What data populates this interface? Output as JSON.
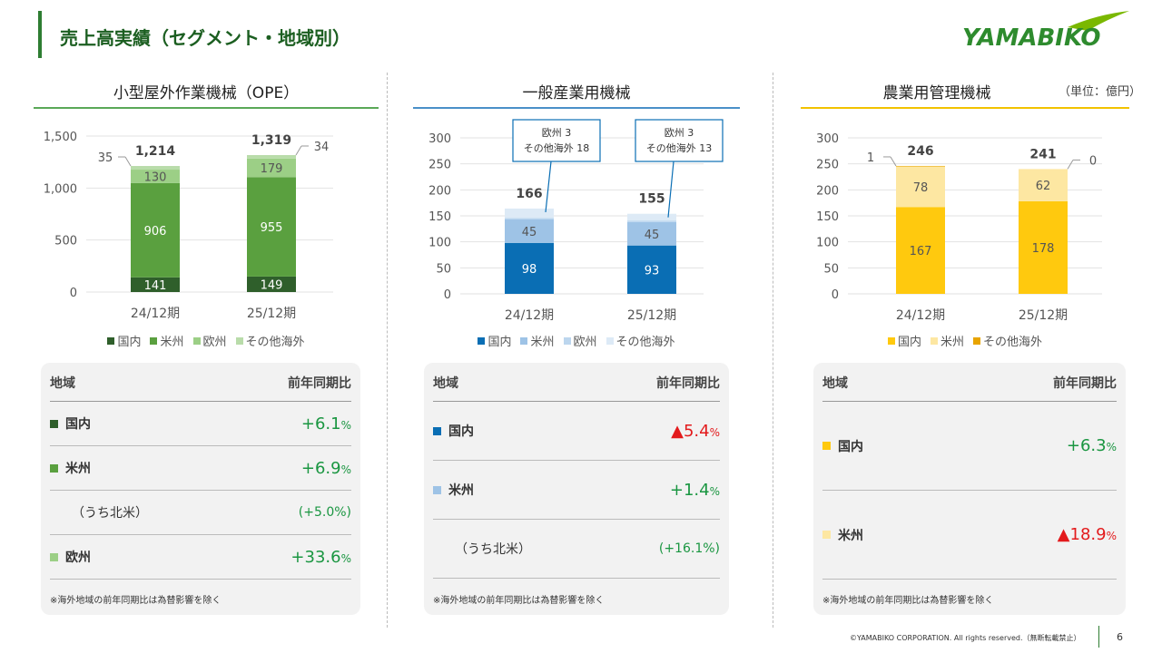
{
  "page": {
    "title": "売上高実績（セグメント・地域別）",
    "logo_text": "YAMABIKO",
    "unit_note": "（単位：億円）",
    "footer": "©YAMABIKO CORPORATION. All rights reserved.（無断転載禁止）",
    "page_number": "6"
  },
  "panels": [
    {
      "title": "小型屋外作業機械（OPE）",
      "rule_color": "#5aa857",
      "legend": [
        {
          "label": "国内",
          "color": "#2f5f2b"
        },
        {
          "label": "米州",
          "color": "#5aa03f"
        },
        {
          "label": "欧州",
          "color": "#9ccf86"
        },
        {
          "label": "その他海外",
          "color": "#b9dcaa"
        }
      ],
      "table": {
        "head_left": "地域",
        "head_right": "前年同期比",
        "rows": [
          {
            "label": "国内",
            "swatch": "#2f5f2b",
            "value": "+6.1",
            "unit": "%",
            "kind": "pos",
            "sub": false
          },
          {
            "label": "米州",
            "swatch": "#5aa03f",
            "value": "+6.9",
            "unit": "%",
            "kind": "pos",
            "sub": false
          },
          {
            "label": "（うち北米）",
            "swatch": "",
            "value": "(+5.0%)",
            "unit": "",
            "kind": "sub",
            "sub": true
          },
          {
            "label": "欧州",
            "swatch": "#9ccf86",
            "value": "+33.6",
            "unit": "%",
            "kind": "pos",
            "sub": false
          }
        ],
        "note": "※海外地域の前年同期比は為替影響を除く"
      }
    },
    {
      "title": "一般産業用機械",
      "rule_color": "#4a90c8",
      "legend": [
        {
          "label": "国内",
          "color": "#0a6eb4"
        },
        {
          "label": "米州",
          "color": "#9ec3e6"
        },
        {
          "label": "欧州",
          "color": "#bcd6ee"
        },
        {
          "label": "その他海外",
          "color": "#ddeaf6"
        }
      ],
      "table": {
        "head_left": "地域",
        "head_right": "前年同期比",
        "rows": [
          {
            "label": "国内",
            "swatch": "#0a6eb4",
            "value": "▲5.4",
            "unit": "%",
            "kind": "neg",
            "sub": false
          },
          {
            "label": "米州",
            "swatch": "#9ec3e6",
            "value": "+1.4",
            "unit": "%",
            "kind": "pos",
            "sub": false
          },
          {
            "label": "（うち北米）",
            "swatch": "",
            "value": "(+16.1%)",
            "unit": "",
            "kind": "sub",
            "sub": true
          }
        ],
        "note": "※海外地域の前年同期比は為替影響を除く"
      }
    },
    {
      "title": "農業用管理機械",
      "rule_color": "#f2c200",
      "legend": [
        {
          "label": "国内",
          "color": "#ffc90e"
        },
        {
          "label": "米州",
          "color": "#fde7a2"
        },
        {
          "label": "その他海外",
          "color": "#e8a400"
        }
      ],
      "table": {
        "head_left": "地域",
        "head_right": "前年同期比",
        "rows": [
          {
            "label": "国内",
            "swatch": "#ffc90e",
            "value": "+6.3",
            "unit": "%",
            "kind": "pos",
            "sub": false
          },
          {
            "label": "米州",
            "swatch": "#fde7a2",
            "value": "▲18.9",
            "unit": "%",
            "kind": "neg",
            "sub": false
          }
        ],
        "note": "※海外地域の前年同期比は為替影響を除く"
      }
    }
  ],
  "chart_data": [
    {
      "type": "bar",
      "stacked": true,
      "title": "小型屋外作業機械（OPE）",
      "categories": [
        "24/12期",
        "25/12期"
      ],
      "ylim": [
        0,
        1500
      ],
      "yticks": [
        "0",
        "500",
        "1,000",
        "1,500"
      ],
      "ytick_values": [
        0,
        500,
        1000,
        1500
      ],
      "totals": [
        "1,214",
        "1,319"
      ],
      "series": [
        {
          "name": "国内",
          "color": "#2f5f2b",
          "values": [
            141,
            149
          ],
          "labels": [
            "141",
            "149"
          ]
        },
        {
          "name": "米州",
          "color": "#5aa03f",
          "values": [
            906,
            955
          ],
          "labels": [
            "906",
            "955"
          ]
        },
        {
          "name": "欧州",
          "color": "#9ccf86",
          "values": [
            130,
            179
          ],
          "labels": [
            "130",
            "179"
          ]
        },
        {
          "name": "その他海外",
          "color": "#b9dcaa",
          "values": [
            35,
            34
          ],
          "labels": [
            "35",
            "34"
          ],
          "callout": true
        }
      ]
    },
    {
      "type": "bar",
      "stacked": true,
      "title": "一般産業用機械",
      "categories": [
        "24/12期",
        "25/12期"
      ],
      "ylim": [
        0,
        300
      ],
      "yticks": [
        "0",
        "50",
        "100",
        "150",
        "200",
        "250",
        "300"
      ],
      "ytick_values": [
        0,
        50,
        100,
        150,
        200,
        250,
        300
      ],
      "totals": [
        "166",
        "155"
      ],
      "series": [
        {
          "name": "国内",
          "color": "#0a6eb4",
          "values": [
            98,
            93
          ],
          "labels": [
            "98",
            "93"
          ]
        },
        {
          "name": "米州",
          "color": "#9ec3e6",
          "values": [
            45,
            45
          ],
          "labels": [
            "45",
            "45"
          ]
        },
        {
          "name": "欧州",
          "color": "#bcd6ee",
          "values": [
            3,
            3
          ],
          "labels": [
            "",
            ""
          ]
        },
        {
          "name": "その他海外",
          "color": "#ddeaf6",
          "values": [
            18,
            13
          ],
          "labels": [
            "",
            ""
          ]
        }
      ],
      "boxes": [
        {
          "line1": "欧州 3",
          "line2": "その他海外 18"
        },
        {
          "line1": "欧州 3",
          "line2": "その他海外 13"
        }
      ]
    },
    {
      "type": "bar",
      "stacked": true,
      "title": "農業用管理機械",
      "categories": [
        "24/12期",
        "25/12期"
      ],
      "ylim": [
        0,
        300
      ],
      "yticks": [
        "0",
        "50",
        "100",
        "150",
        "200",
        "250",
        "300"
      ],
      "ytick_values": [
        0,
        50,
        100,
        150,
        200,
        250,
        300
      ],
      "totals": [
        "246",
        "241"
      ],
      "series": [
        {
          "name": "国内",
          "color": "#ffc90e",
          "values": [
            167,
            178
          ],
          "labels": [
            "167",
            "178"
          ]
        },
        {
          "name": "米州",
          "color": "#fde7a2",
          "values": [
            78,
            62
          ],
          "labels": [
            "78",
            "62"
          ]
        },
        {
          "name": "その他海外",
          "color": "#e8a400",
          "values": [
            1,
            0
          ],
          "labels": [
            "1",
            "0"
          ],
          "callout": true
        }
      ]
    }
  ]
}
